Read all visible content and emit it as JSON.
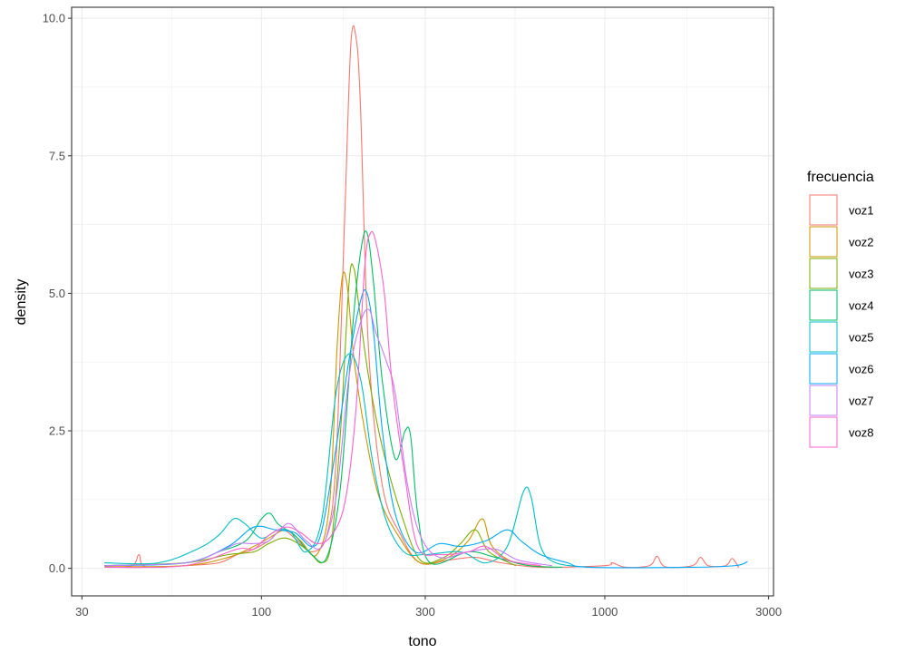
{
  "chart_data": {
    "type": "line",
    "xlabel": "tono",
    "ylabel": "density",
    "x_scale": "log10",
    "xlim": [
      28,
      3100
    ],
    "ylim": [
      -0.5,
      10.2
    ],
    "x_ticks": [
      30,
      100,
      300,
      1000,
      3000
    ],
    "x_tick_labels": [
      "30",
      "100",
      "300",
      "1000",
      "3000"
    ],
    "y_ticks": [
      0,
      2.5,
      5,
      7.5,
      10
    ],
    "y_tick_labels": [
      "0.0",
      "2.5",
      "5.0",
      "7.5",
      "10.0"
    ],
    "grid": true,
    "legend": {
      "title": "frecuencia",
      "position": "right"
    },
    "series": [
      {
        "name": "voz1",
        "color": "#F8766D",
        "points": [
          [
            35,
            0.02
          ],
          [
            42,
            0.05
          ],
          [
            44,
            0.25
          ],
          [
            46,
            0.03
          ],
          [
            60,
            0.05
          ],
          [
            75,
            0.1
          ],
          [
            85,
            0.25
          ],
          [
            95,
            0.35
          ],
          [
            105,
            0.5
          ],
          [
            115,
            0.7
          ],
          [
            125,
            0.55
          ],
          [
            140,
            0.3
          ],
          [
            155,
            0.6
          ],
          [
            165,
            2.0
          ],
          [
            175,
            6.5
          ],
          [
            182,
            9.5
          ],
          [
            188,
            9.7
          ],
          [
            194,
            8.5
          ],
          [
            205,
            4.0
          ],
          [
            225,
            1.5
          ],
          [
            255,
            0.6
          ],
          [
            290,
            0.1
          ],
          [
            350,
            0.15
          ],
          [
            420,
            0.2
          ],
          [
            500,
            0.1
          ],
          [
            650,
            0.02
          ],
          [
            1000,
            0.05
          ],
          [
            1050,
            0.1
          ],
          [
            1150,
            0.02
          ],
          [
            1350,
            0.05
          ],
          [
            1420,
            0.22
          ],
          [
            1500,
            0.03
          ],
          [
            1800,
            0.05
          ],
          [
            1900,
            0.2
          ],
          [
            2000,
            0.05
          ],
          [
            2250,
            0.05
          ],
          [
            2350,
            0.18
          ],
          [
            2450,
            0.02
          ]
        ]
      },
      {
        "name": "voz2",
        "color": "#CD9600",
        "points": [
          [
            35,
            0.03
          ],
          [
            60,
            0.05
          ],
          [
            80,
            0.2
          ],
          [
            95,
            0.4
          ],
          [
            105,
            0.55
          ],
          [
            118,
            0.7
          ],
          [
            130,
            0.5
          ],
          [
            145,
            0.25
          ],
          [
            158,
            1.2
          ],
          [
            166,
            4.0
          ],
          [
            172,
            5.3
          ],
          [
            178,
            5.1
          ],
          [
            186,
            3.8
          ],
          [
            200,
            2.5
          ],
          [
            220,
            1.3
          ],
          [
            250,
            0.6
          ],
          [
            290,
            0.1
          ],
          [
            350,
            0.2
          ],
          [
            400,
            0.5
          ],
          [
            440,
            0.9
          ],
          [
            470,
            0.4
          ],
          [
            550,
            0.1
          ],
          [
            700,
            0.02
          ]
        ]
      },
      {
        "name": "voz3",
        "color": "#7CAE00",
        "points": [
          [
            35,
            0.05
          ],
          [
            60,
            0.1
          ],
          [
            80,
            0.25
          ],
          [
            95,
            0.3
          ],
          [
            105,
            0.45
          ],
          [
            118,
            0.55
          ],
          [
            135,
            0.35
          ],
          [
            150,
            0.1
          ],
          [
            160,
            0.5
          ],
          [
            170,
            2.5
          ],
          [
            180,
            5.2
          ],
          [
            186,
            5.45
          ],
          [
            192,
            4.8
          ],
          [
            205,
            3.5
          ],
          [
            225,
            2.2
          ],
          [
            255,
            1.0
          ],
          [
            290,
            0.15
          ],
          [
            340,
            0.2
          ],
          [
            380,
            0.45
          ],
          [
            420,
            0.7
          ],
          [
            460,
            0.3
          ],
          [
            550,
            0.05
          ]
        ]
      },
      {
        "name": "voz4",
        "color": "#00BE67",
        "points": [
          [
            35,
            0.05
          ],
          [
            60,
            0.1
          ],
          [
            75,
            0.3
          ],
          [
            90,
            0.5
          ],
          [
            100,
            0.9
          ],
          [
            106,
            1.0
          ],
          [
            112,
            0.8
          ],
          [
            125,
            0.6
          ],
          [
            140,
            0.25
          ],
          [
            155,
            0.2
          ],
          [
            170,
            1.5
          ],
          [
            185,
            4.5
          ],
          [
            195,
            5.8
          ],
          [
            203,
            6.1
          ],
          [
            212,
            5.2
          ],
          [
            225,
            3.4
          ],
          [
            245,
            2.0
          ],
          [
            262,
            2.5
          ],
          [
            272,
            2.4
          ],
          [
            285,
            1.0
          ],
          [
            310,
            0.1
          ],
          [
            400,
            0.3
          ],
          [
            480,
            0.2
          ],
          [
            600,
            0.05
          ],
          [
            750,
            0.02
          ]
        ]
      },
      {
        "name": "voz5",
        "color": "#00BFC4",
        "points": [
          [
            35,
            0.1
          ],
          [
            50,
            0.1
          ],
          [
            65,
            0.35
          ],
          [
            75,
            0.6
          ],
          [
            83,
            0.9
          ],
          [
            90,
            0.8
          ],
          [
            100,
            0.55
          ],
          [
            112,
            0.7
          ],
          [
            122,
            0.65
          ],
          [
            135,
            0.3
          ],
          [
            150,
            0.9
          ],
          [
            165,
            3.2
          ],
          [
            180,
            3.9
          ],
          [
            195,
            3.4
          ],
          [
            210,
            2.0
          ],
          [
            230,
            0.9
          ],
          [
            260,
            0.3
          ],
          [
            300,
            0.25
          ],
          [
            380,
            0.3
          ],
          [
            450,
            0.1
          ],
          [
            520,
            0.4
          ],
          [
            580,
            1.4
          ],
          [
            610,
            1.3
          ],
          [
            650,
            0.4
          ],
          [
            720,
            0.1
          ],
          [
            900,
            0.02
          ]
        ]
      },
      {
        "name": "voz6",
        "color": "#00A9FF",
        "points": [
          [
            35,
            0.05
          ],
          [
            60,
            0.1
          ],
          [
            80,
            0.4
          ],
          [
            95,
            0.75
          ],
          [
            110,
            0.7
          ],
          [
            125,
            0.65
          ],
          [
            140,
            0.4
          ],
          [
            150,
            0.7
          ],
          [
            165,
            2.2
          ],
          [
            180,
            3.8
          ],
          [
            195,
            4.9
          ],
          [
            203,
            5.0
          ],
          [
            212,
            4.3
          ],
          [
            225,
            2.5
          ],
          [
            245,
            1.0
          ],
          [
            280,
            0.3
          ],
          [
            330,
            0.45
          ],
          [
            380,
            0.4
          ],
          [
            450,
            0.5
          ],
          [
            520,
            0.7
          ],
          [
            570,
            0.5
          ],
          [
            650,
            0.25
          ],
          [
            780,
            0.1
          ],
          [
            900,
            0.02
          ],
          [
            1800,
            0.02
          ],
          [
            2400,
            0.05
          ],
          [
            2600,
            0.12
          ]
        ]
      },
      {
        "name": "voz7",
        "color": "#C77CFF",
        "points": [
          [
            35,
            0.05
          ],
          [
            60,
            0.1
          ],
          [
            75,
            0.3
          ],
          [
            85,
            0.45
          ],
          [
            95,
            0.45
          ],
          [
            105,
            0.5
          ],
          [
            115,
            0.75
          ],
          [
            122,
            0.8
          ],
          [
            135,
            0.5
          ],
          [
            150,
            0.4
          ],
          [
            165,
            1.3
          ],
          [
            180,
            3.5
          ],
          [
            195,
            4.5
          ],
          [
            206,
            4.7
          ],
          [
            215,
            4.3
          ],
          [
            230,
            3.8
          ],
          [
            245,
            3.2
          ],
          [
            265,
            1.6
          ],
          [
            290,
            0.6
          ],
          [
            330,
            0.2
          ],
          [
            400,
            0.3
          ],
          [
            480,
            0.35
          ],
          [
            560,
            0.15
          ],
          [
            700,
            0.05
          ]
        ]
      },
      {
        "name": "voz8",
        "color": "#FF61CC",
        "points": [
          [
            35,
            0.02
          ],
          [
            60,
            0.05
          ],
          [
            85,
            0.35
          ],
          [
            95,
            0.35
          ],
          [
            105,
            0.6
          ],
          [
            118,
            0.75
          ],
          [
            130,
            0.65
          ],
          [
            145,
            0.45
          ],
          [
            160,
            0.6
          ],
          [
            175,
            1.2
          ],
          [
            188,
            2.8
          ],
          [
            200,
            5.5
          ],
          [
            208,
            6.1
          ],
          [
            216,
            5.9
          ],
          [
            228,
            5.0
          ],
          [
            240,
            3.4
          ],
          [
            260,
            1.8
          ],
          [
            285,
            0.4
          ],
          [
            330,
            0.25
          ],
          [
            400,
            0.3
          ],
          [
            450,
            0.4
          ],
          [
            520,
            0.15
          ],
          [
            650,
            0.05
          ]
        ]
      }
    ]
  }
}
